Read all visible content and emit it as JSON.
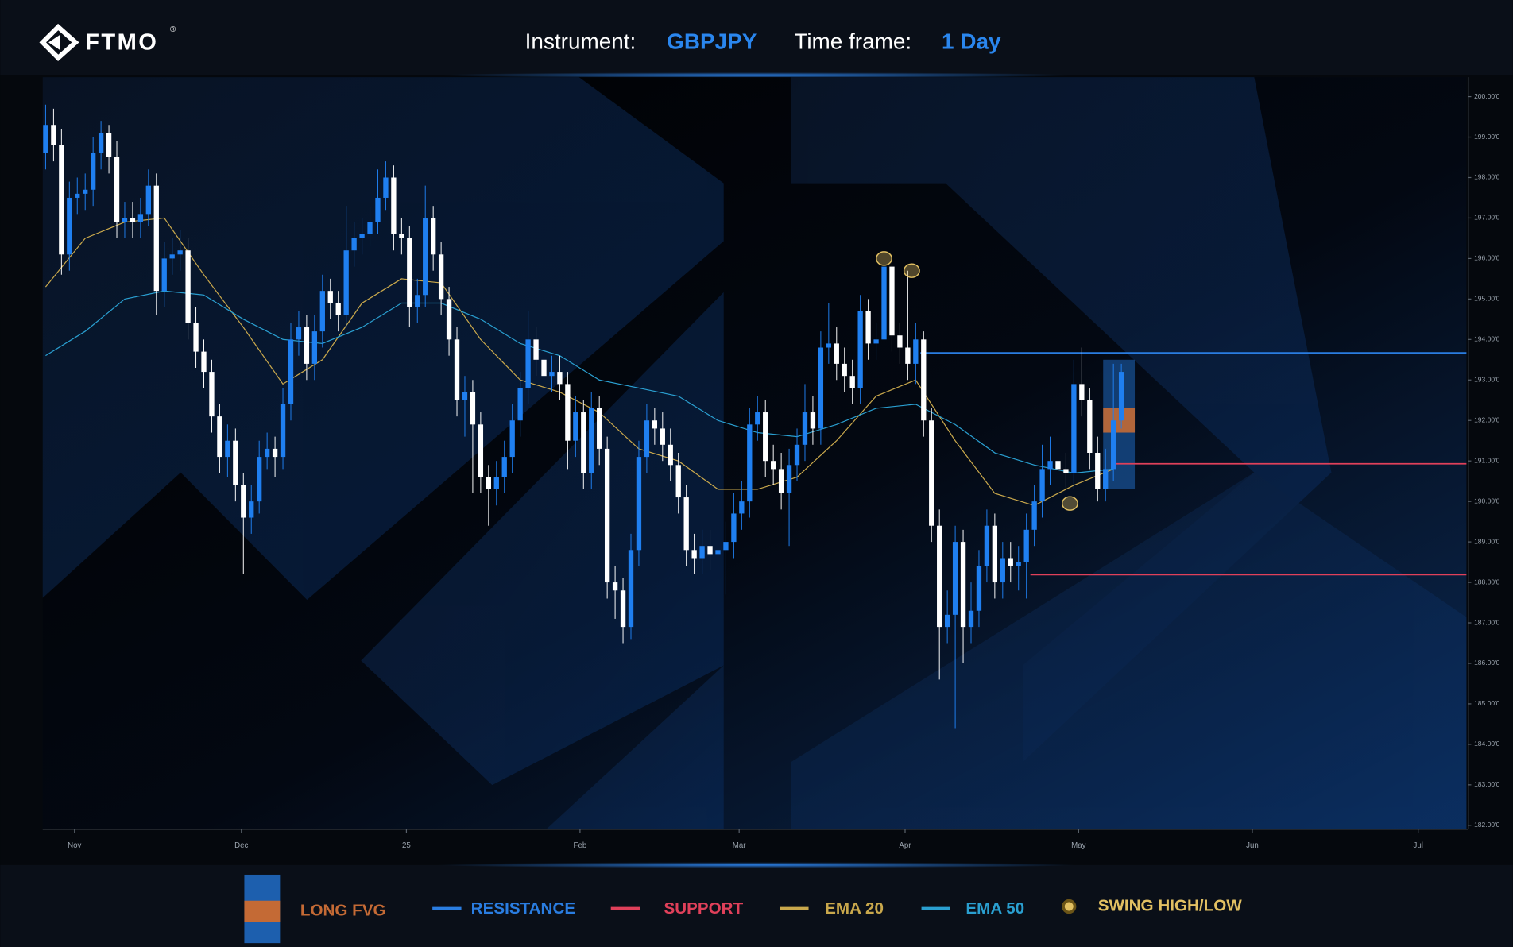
{
  "header": {
    "logo": "FTMO",
    "logo_mark": "®",
    "instrument_label": "Instrument:",
    "instrument": "GBPJPY",
    "timeframe_label": "Time frame:",
    "timeframe": "1 Day"
  },
  "chart_data": {
    "type": "candlestick",
    "up_color": "#1f7ff0",
    "down_color": "#ffffff",
    "ylim": [
      181.9,
      200.48
    ],
    "yticks": [
      {
        "value": 182,
        "label": "182.00'0"
      },
      {
        "value": 183,
        "label": "183.00'0"
      },
      {
        "value": 184,
        "label": "184.00'0"
      },
      {
        "value": 185,
        "label": "185.00'0"
      },
      {
        "value": 186,
        "label": "186.00'0"
      },
      {
        "value": 187,
        "label": "187.00'0"
      },
      {
        "value": 188,
        "label": "188.00'0"
      },
      {
        "value": 189,
        "label": "189.00'0"
      },
      {
        "value": 190,
        "label": "190.00'0"
      },
      {
        "value": 191,
        "label": "191.00'0"
      },
      {
        "value": 192,
        "label": "192.00'0"
      },
      {
        "value": 193,
        "label": "193.00'0"
      },
      {
        "value": 194,
        "label": "194.00'0"
      },
      {
        "value": 195,
        "label": "195.00'0"
      },
      {
        "value": 196,
        "label": "196.00'0"
      },
      {
        "value": 197,
        "label": "197.00'0"
      },
      {
        "value": 198,
        "label": "198.00'0"
      },
      {
        "value": 199,
        "label": "199.00'0"
      },
      {
        "value": 200,
        "label": "200.00'0"
      }
    ],
    "xlim": [
      -0.37,
      179.63
    ],
    "xticks": [
      {
        "value": 3.65,
        "label": "Nov"
      },
      {
        "value": 24.75,
        "label": "Dec"
      },
      {
        "value": 45.61,
        "label": "25"
      },
      {
        "value": 67.56,
        "label": "Feb"
      },
      {
        "value": 87.68,
        "label": "Mar"
      },
      {
        "value": 108.66,
        "label": "Apr"
      },
      {
        "value": 130.6,
        "label": "May"
      },
      {
        "value": 152.56,
        "label": "Jun"
      },
      {
        "value": 173.53,
        "label": "Jul"
      }
    ],
    "open": [
      198.6,
      199.3,
      198.8,
      196.1,
      197.5,
      197.6,
      197.7,
      198.6,
      199.1,
      198.5,
      196.9,
      197.0,
      196.9,
      197.1,
      197.8,
      195.2,
      196.0,
      196.1,
      196.2,
      194.4,
      193.7,
      193.2,
      192.1,
      191.1,
      191.5,
      190.4,
      189.6,
      190.0,
      191.1,
      191.3,
      191.1,
      192.4,
      194.0,
      194.3,
      193.4,
      194.2,
      195.2,
      194.9,
      194.6,
      196.2,
      196.5,
      196.6,
      196.9,
      197.5,
      198.0,
      196.6,
      196.5,
      194.8,
      195.1,
      197.0,
      196.1,
      195.0,
      194.0,
      192.5,
      192.7,
      191.9,
      190.6,
      190.3,
      190.6,
      191.1,
      192.0,
      192.8,
      194.0,
      193.5,
      193.1,
      193.2,
      192.9,
      191.5,
      192.2,
      190.7,
      192.3,
      191.3,
      188.0,
      187.8,
      186.9,
      188.8,
      191.1,
      192.0,
      191.8,
      191.4,
      190.9,
      190.1,
      188.8,
      188.6,
      188.9,
      188.7,
      188.8,
      189.0,
      189.7,
      190.0,
      191.9,
      192.2,
      191.0,
      190.8,
      190.2,
      190.9,
      191.4,
      192.2,
      191.8,
      193.8,
      193.9,
      193.4,
      193.1,
      192.8,
      194.7,
      193.9,
      194.0,
      195.8,
      194.1,
      193.8,
      193.4,
      194.0,
      192.0,
      189.4,
      186.9,
      187.2,
      189.0,
      186.9,
      187.3,
      188.4,
      189.4,
      188.0,
      188.6,
      188.4,
      188.5,
      189.3,
      190.0,
      190.8,
      191.0,
      190.8,
      190.7,
      192.9,
      192.5,
      191.2,
      190.3,
      190.8,
      192.0
    ],
    "high": [
      199.8,
      199.7,
      199.2,
      197.9,
      198.0,
      198.1,
      199.0,
      199.4,
      199.3,
      198.9,
      197.4,
      197.4,
      197.5,
      198.2,
      198.1,
      196.4,
      196.5,
      196.7,
      196.5,
      194.8,
      194.0,
      193.5,
      192.4,
      191.9,
      191.8,
      190.7,
      190.4,
      191.5,
      191.7,
      191.6,
      192.8,
      194.4,
      194.7,
      194.6,
      194.6,
      195.6,
      195.5,
      195.2,
      197.3,
      196.9,
      197.0,
      197.3,
      198.2,
      198.4,
      198.3,
      197.0,
      196.8,
      195.5,
      197.8,
      197.3,
      196.4,
      195.3,
      194.3,
      193.1,
      193.0,
      192.2,
      190.9,
      191.0,
      191.5,
      192.4,
      193.2,
      194.7,
      194.3,
      193.9,
      193.6,
      193.6,
      193.2,
      192.6,
      192.5,
      192.7,
      192.6,
      191.6,
      188.4,
      188.1,
      189.2,
      191.5,
      192.4,
      192.3,
      192.2,
      191.8,
      191.2,
      190.4,
      189.2,
      189.3,
      189.3,
      189.2,
      189.5,
      190.2,
      190.5,
      192.3,
      192.6,
      192.5,
      191.4,
      191.2,
      191.3,
      191.8,
      192.9,
      192.6,
      194.2,
      194.9,
      194.3,
      193.8,
      193.5,
      195.1,
      195.0,
      194.4,
      196.0,
      195.9,
      194.4,
      195.7,
      194.4,
      194.2,
      192.3,
      189.8,
      187.8,
      189.4,
      189.3,
      188.0,
      188.8,
      189.8,
      189.7,
      189.0,
      189.0,
      188.9,
      189.7,
      190.4,
      191.4,
      191.6,
      191.3,
      191.2,
      193.5,
      193.8,
      192.8,
      191.6,
      191.3,
      193.4,
      193.4
    ],
    "low": [
      198.2,
      198.4,
      195.6,
      195.7,
      197.1,
      197.2,
      197.3,
      198.2,
      198.1,
      196.5,
      196.5,
      196.5,
      196.5,
      196.8,
      194.6,
      194.8,
      195.6,
      195.7,
      194.0,
      193.3,
      192.8,
      191.7,
      190.7,
      190.6,
      190.0,
      188.2,
      189.2,
      189.7,
      190.8,
      190.6,
      190.8,
      192.0,
      193.6,
      193.0,
      193.0,
      193.8,
      194.5,
      194.2,
      194.3,
      195.8,
      196.1,
      196.3,
      196.6,
      197.2,
      196.2,
      196.1,
      194.3,
      194.4,
      194.8,
      195.7,
      194.6,
      193.6,
      192.1,
      191.6,
      190.2,
      190.2,
      189.4,
      189.9,
      190.2,
      190.7,
      191.6,
      192.4,
      193.1,
      192.7,
      192.7,
      192.5,
      190.8,
      191.1,
      190.3,
      190.3,
      190.9,
      187.6,
      187.1,
      186.5,
      186.6,
      188.4,
      190.7,
      191.4,
      191.0,
      190.5,
      189.7,
      188.4,
      188.2,
      188.2,
      188.3,
      188.3,
      187.7,
      188.6,
      189.3,
      189.6,
      191.5,
      190.6,
      190.4,
      189.8,
      188.9,
      190.5,
      191.0,
      191.4,
      191.4,
      193.4,
      193.0,
      192.7,
      192.4,
      192.4,
      193.5,
      193.5,
      193.6,
      193.7,
      193.4,
      193.0,
      192.9,
      191.6,
      189.0,
      185.6,
      186.5,
      184.4,
      186.0,
      186.5,
      186.9,
      188.0,
      187.6,
      187.6,
      188.0,
      187.8,
      187.6,
      188.9,
      189.6,
      190.4,
      190.4,
      190.3,
      190.3,
      192.1,
      190.8,
      190.0,
      190.0,
      190.5,
      191.8
    ],
    "close": [
      199.3,
      198.8,
      196.1,
      197.5,
      197.6,
      197.7,
      198.6,
      199.1,
      198.5,
      196.9,
      197.0,
      196.9,
      197.1,
      197.8,
      195.2,
      196.0,
      196.1,
      196.2,
      194.4,
      193.7,
      193.2,
      192.1,
      191.1,
      191.5,
      190.4,
      189.6,
      190.0,
      191.1,
      191.3,
      191.1,
      192.4,
      194.0,
      194.3,
      193.4,
      194.2,
      195.2,
      194.9,
      194.6,
      196.2,
      196.5,
      196.6,
      196.9,
      197.5,
      198.0,
      196.6,
      196.5,
      194.8,
      195.1,
      197.0,
      196.1,
      195.0,
      194.0,
      192.5,
      192.7,
      191.9,
      190.6,
      190.3,
      190.6,
      191.1,
      192.0,
      192.8,
      194.0,
      193.5,
      193.1,
      193.2,
      192.9,
      191.5,
      192.2,
      190.7,
      192.3,
      191.3,
      188.0,
      187.8,
      186.9,
      188.8,
      191.1,
      192.0,
      191.8,
      191.4,
      190.9,
      190.1,
      188.8,
      188.6,
      188.9,
      188.7,
      188.8,
      189.0,
      189.7,
      190.0,
      191.9,
      192.2,
      191.0,
      190.8,
      190.2,
      190.9,
      191.4,
      192.2,
      191.8,
      193.8,
      193.9,
      193.4,
      193.1,
      192.8,
      194.7,
      193.9,
      194.0,
      195.8,
      194.1,
      193.8,
      193.4,
      194.0,
      192.0,
      189.4,
      186.9,
      187.2,
      189.0,
      186.9,
      187.3,
      188.4,
      189.4,
      188.0,
      188.6,
      188.4,
      188.5,
      189.3,
      190.0,
      190.8,
      191.0,
      190.8,
      190.7,
      192.9,
      192.5,
      191.2,
      190.3,
      190.8,
      192.0,
      193.2
    ],
    "ema20": {
      "name": "EMA 20",
      "color": "#c9a84c",
      "x": [
        0,
        5,
        10,
        15,
        20,
        25,
        30,
        35,
        40,
        45,
        50,
        55,
        60,
        65,
        70,
        75,
        80,
        85,
        90,
        95,
        100,
        105,
        110,
        115,
        120,
        125,
        130,
        135
      ],
      "values": [
        195.3,
        196.5,
        196.9,
        197.0,
        195.6,
        194.3,
        192.9,
        193.5,
        194.9,
        195.5,
        195.4,
        194.0,
        193.0,
        192.7,
        192.2,
        191.3,
        191.0,
        190.3,
        190.3,
        190.6,
        191.5,
        192.6,
        193.0,
        191.5,
        190.2,
        189.9,
        190.4,
        190.8
      ]
    },
    "ema50": {
      "name": "EMA 50",
      "color": "#2a9fd0",
      "x": [
        0,
        5,
        10,
        15,
        20,
        25,
        30,
        35,
        40,
        45,
        50,
        55,
        60,
        65,
        70,
        75,
        80,
        85,
        90,
        95,
        100,
        105,
        110,
        115,
        120,
        125,
        130,
        135
      ],
      "values": [
        193.6,
        194.2,
        195.0,
        195.2,
        195.1,
        194.5,
        194.0,
        193.9,
        194.3,
        194.9,
        194.9,
        194.5,
        193.9,
        193.6,
        193.0,
        192.8,
        192.6,
        192.0,
        191.7,
        191.6,
        191.9,
        192.3,
        192.4,
        191.9,
        191.2,
        190.9,
        190.7,
        190.8
      ]
    },
    "resistance": {
      "name": "RESISTANCE",
      "color": "#2a7de1",
      "levels": [
        193.67
      ],
      "x_start": [
        110.6
      ]
    },
    "support": {
      "name": "SUPPORT",
      "color": "#e0405a",
      "levels": [
        190.93,
        188.19
      ],
      "x_start": [
        135.3,
        124.5
      ]
    },
    "fvg": {
      "name": "LONG FVG",
      "zone_color": "#1d5fae",
      "gap_color": "#c46a35",
      "x": [
        133.7,
        137.7
      ],
      "zone": [
        190.3,
        193.5
      ],
      "gap": [
        191.7,
        192.3
      ]
    },
    "swing": {
      "name": "SWING HIGH/LOW",
      "color": "#e2c062",
      "x": [
        106,
        109.5,
        129.5
      ],
      "values": [
        196.0,
        195.7,
        189.95
      ]
    }
  }
}
